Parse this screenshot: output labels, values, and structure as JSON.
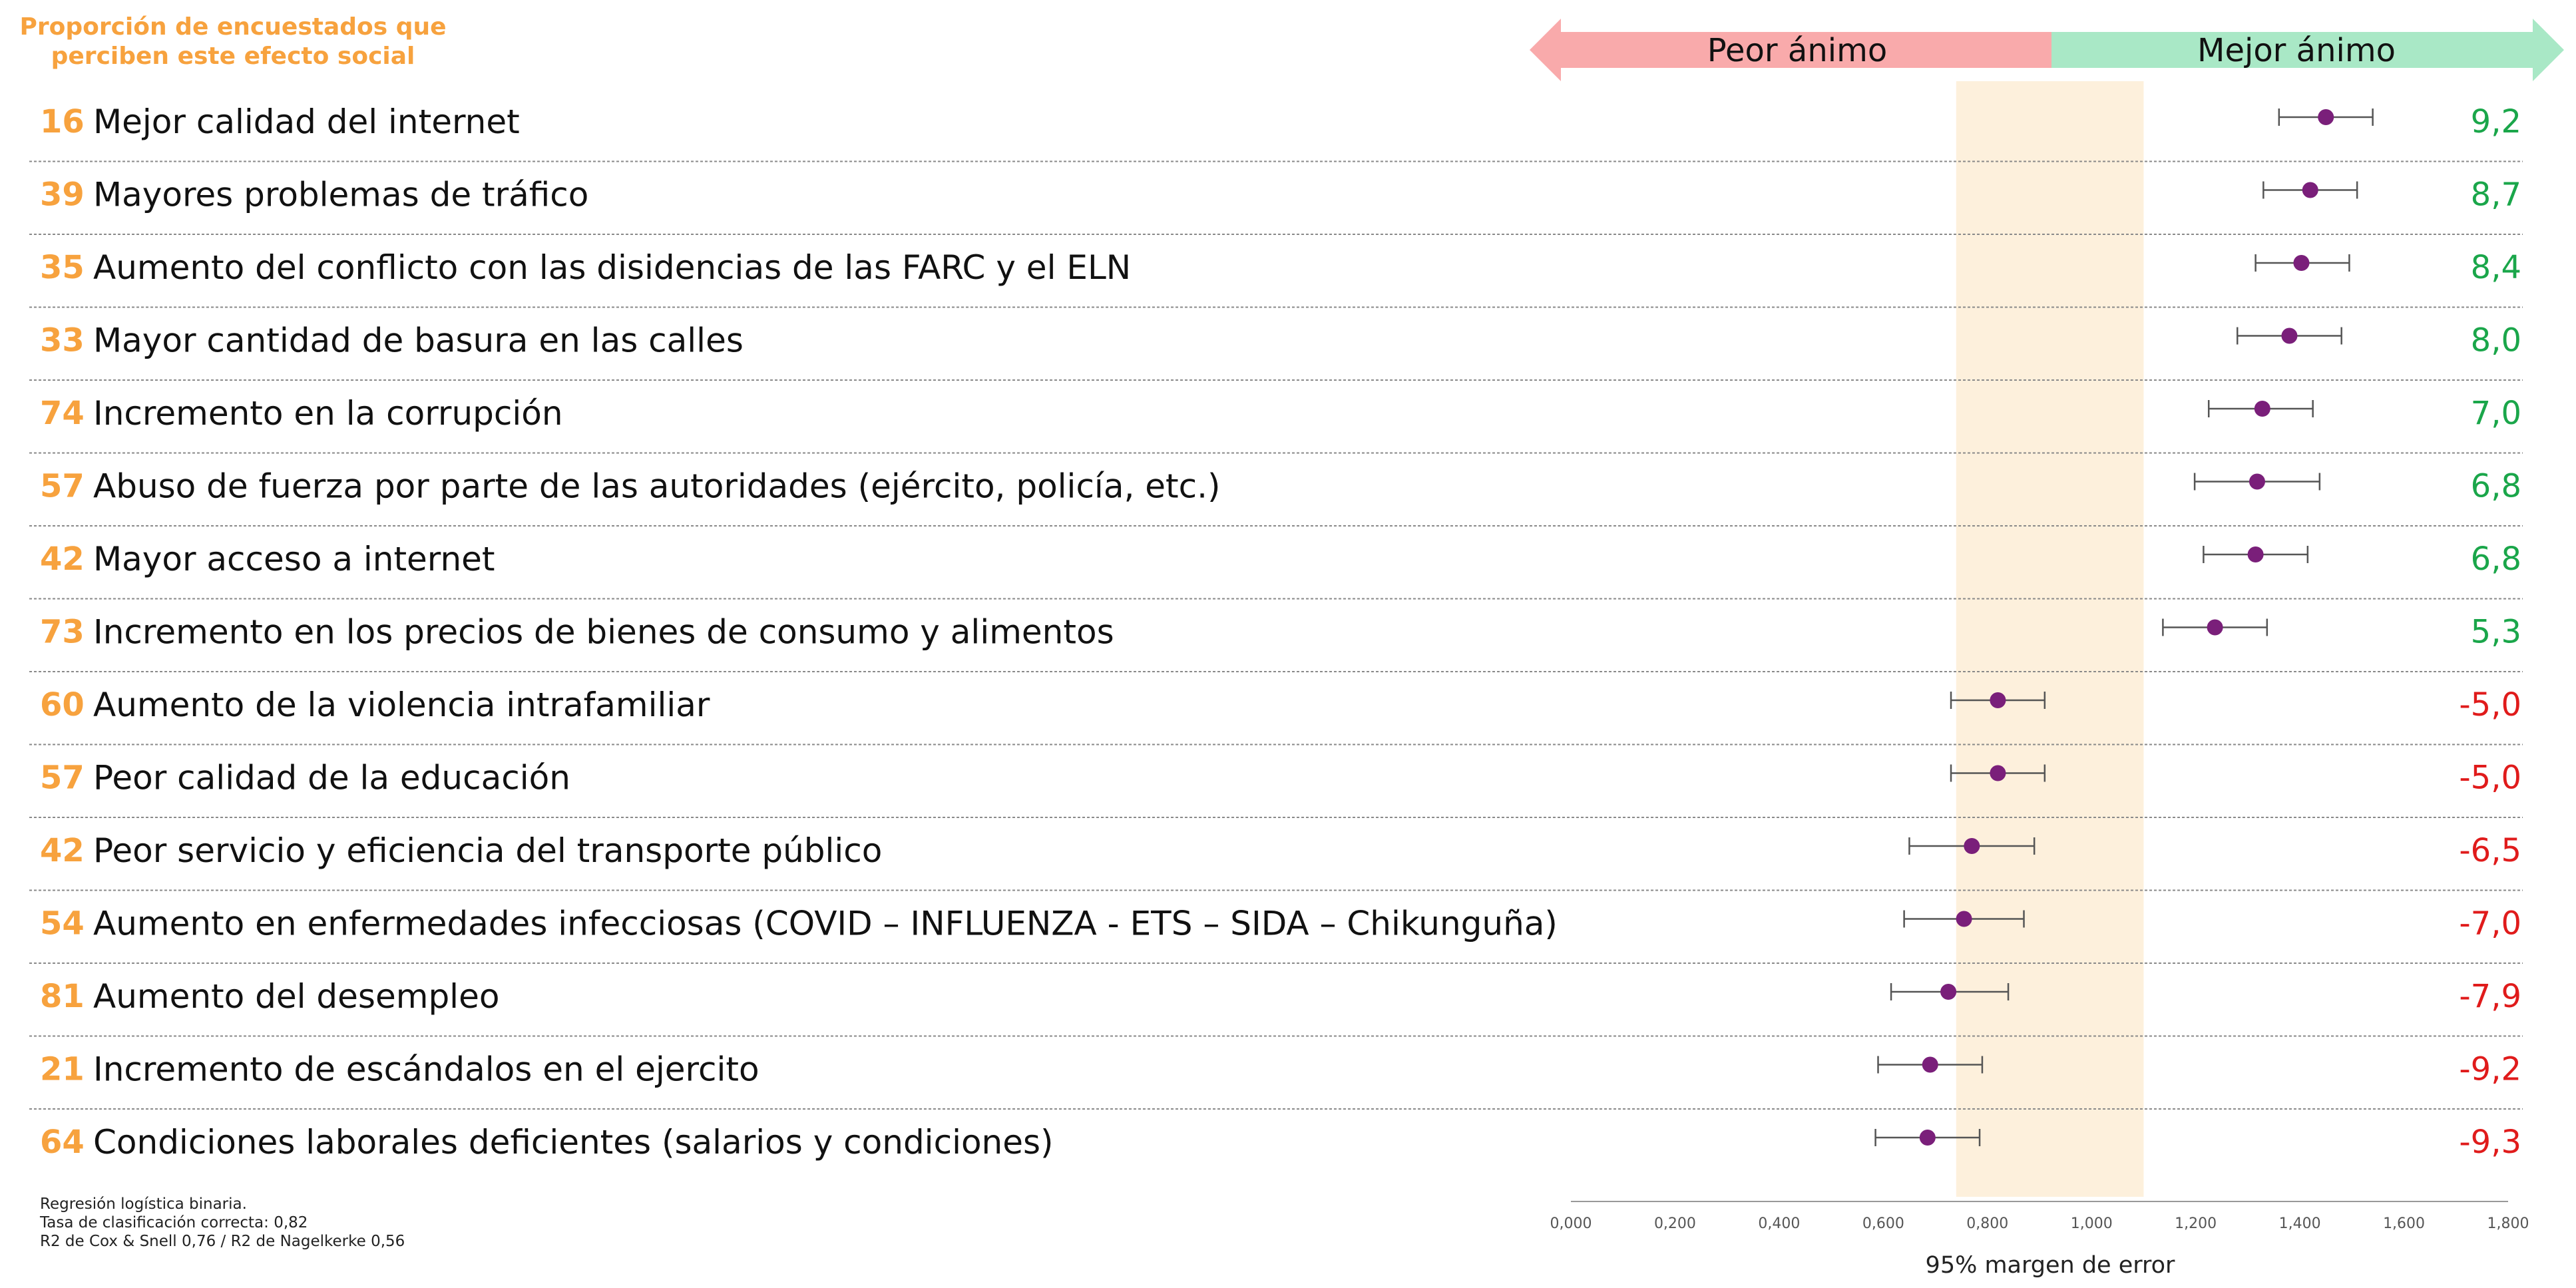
{
  "chart_data": {
    "type": "dot-errorbar",
    "header": [
      "Proporción de encuestados que",
      "perciben este efecto social"
    ],
    "arrows": {
      "left": "Peor ánimo",
      "right": "Mejor ánimo"
    },
    "rows": [
      {
        "pct": "16",
        "label": "Mejor calidad del internet",
        "value": "9,2",
        "est": 1.45,
        "low": 1.36,
        "high": 1.54
      },
      {
        "pct": "39",
        "label": "Mayores problemas de tráfico",
        "value": "8,7",
        "est": 1.42,
        "low": 1.33,
        "high": 1.51
      },
      {
        "pct": "35",
        "label": "Aumento del conflicto con las disidencias de las FARC y el ELN",
        "value": "8,4",
        "est": 1.403,
        "low": 1.315,
        "high": 1.495
      },
      {
        "pct": "33",
        "label": "Mayor cantidad de basura en las calles",
        "value": "8,0",
        "est": 1.38,
        "low": 1.28,
        "high": 1.48
      },
      {
        "pct": "74",
        "label": "Incremento en la corrupción",
        "value": "7,0",
        "est": 1.328,
        "low": 1.225,
        "high": 1.425
      },
      {
        "pct": "57",
        "label": "Abuso de fuerza por parte de las autoridades (ejército, policía, etc.)",
        "value": "6,8",
        "est": 1.318,
        "low": 1.198,
        "high": 1.438
      },
      {
        "pct": "42",
        "label": "Mayor acceso a internet",
        "value": "6,8",
        "est": 1.315,
        "low": 1.215,
        "high": 1.415
      },
      {
        "pct": "73",
        "label": "Incremento en los precios de bienes de consumo y alimentos",
        "value": "5,3",
        "est": 1.237,
        "low": 1.137,
        "high": 1.337
      },
      {
        "pct": "60",
        "label": "Aumento de la violencia intrafamiliar",
        "value": "-5,0",
        "est": 0.82,
        "low": 0.73,
        "high": 0.91
      },
      {
        "pct": "57",
        "label": "Peor calidad de la educación",
        "value": "-5,0",
        "est": 0.82,
        "low": 0.73,
        "high": 0.91
      },
      {
        "pct": "42",
        "label": "Peor servicio y eficiencia del transporte público",
        "value": "-6,5",
        "est": 0.77,
        "low": 0.65,
        "high": 0.89
      },
      {
        "pct": "54",
        "label": "Aumento en enfermedades infecciosas (COVID – INFLUENZA - ETS – SIDA – Chikunguña)",
        "value": "-7,0",
        "est": 0.755,
        "low": 0.64,
        "high": 0.87
      },
      {
        "pct": "81",
        "label": "Aumento del desempleo",
        "value": "-7,9",
        "est": 0.725,
        "low": 0.615,
        "high": 0.84
      },
      {
        "pct": "21",
        "label": "Incremento de escándalos en el ejercito",
        "value": "-9,2",
        "est": 0.69,
        "low": 0.59,
        "high": 0.79
      },
      {
        "pct": "64",
        "label": "Condiciones laborales deficientes (salarios y condiciones)",
        "value": "-9,3",
        "est": 0.685,
        "low": 0.585,
        "high": 0.785
      }
    ],
    "x_ticks": [
      "0,000",
      "0,200",
      "0,400",
      "0,600",
      "0,800",
      "1,000",
      "1,200",
      "1,400",
      "1,600",
      "1,800"
    ],
    "xlim": [
      0,
      1.8
    ],
    "band": {
      "from": 0.74,
      "to": 1.1
    },
    "xlabel": "95% margen de error",
    "notes": [
      "Regresión logística binaria.",
      "Tasa de clasificación correcta: 0,82",
      "R2 de Cox & Snell 0,76 / R2 de Nagelkerke 0,56"
    ],
    "colors": {
      "header": "#f7a23e",
      "point": "#7a1f7a",
      "positive": "#1aa64a",
      "negative": "#e01b1b",
      "band": "#fdf0dc",
      "arrow_left": "#f9aaab",
      "arrow_right": "#a9e8c6"
    }
  }
}
